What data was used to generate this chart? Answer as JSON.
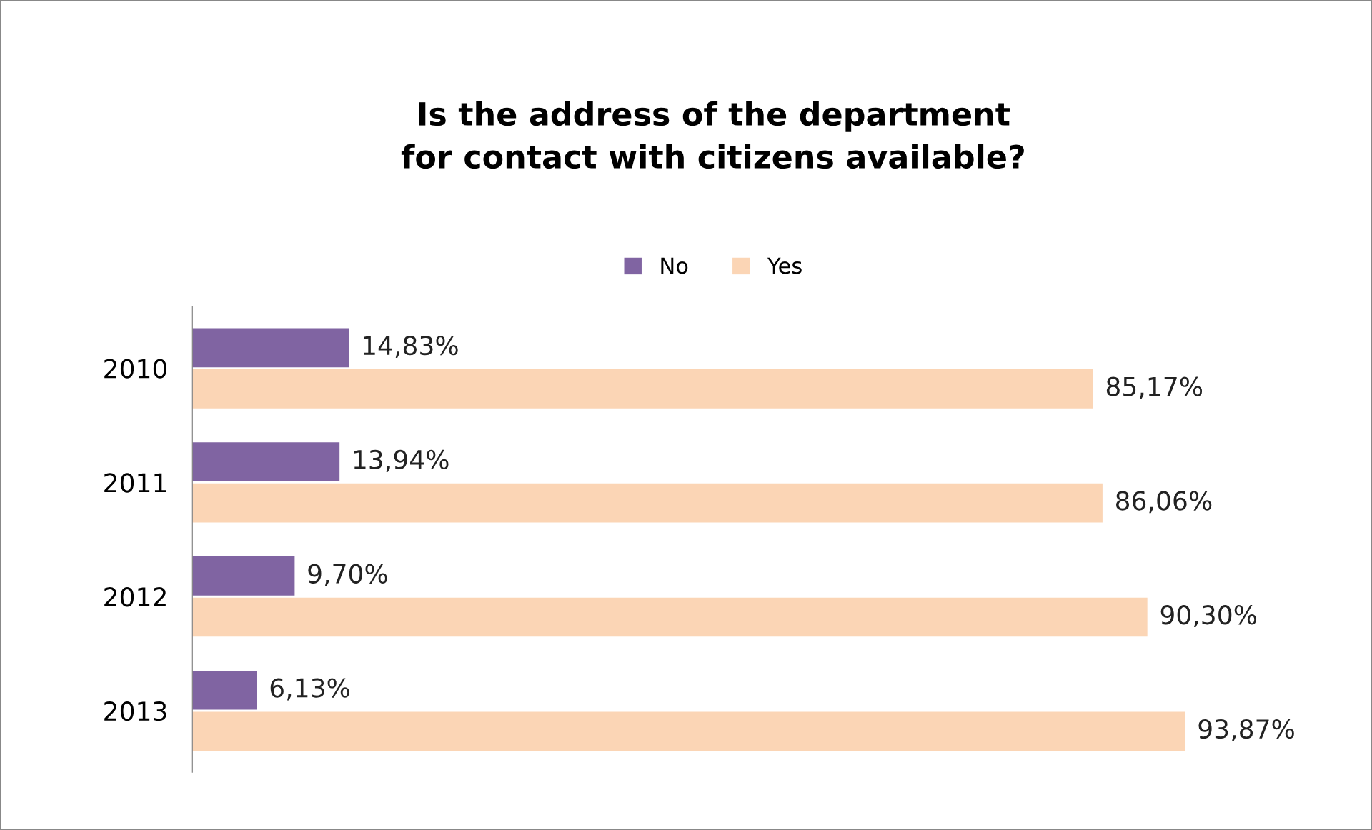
{
  "chart_data": {
    "type": "bar",
    "orientation": "horizontal",
    "title": "Is the address of the department\nfor contact with citizens available?",
    "categories": [
      "2010",
      "2011",
      "2012",
      "2013"
    ],
    "series": [
      {
        "name": "No",
        "color": "#8064a2",
        "values": [
          14.83,
          13.94,
          9.7,
          6.13
        ],
        "value_labels": [
          "14,83%",
          "13,94%",
          "9,70%",
          "6,13%"
        ]
      },
      {
        "name": "Yes",
        "color": "#fbd5b5",
        "values": [
          85.17,
          86.06,
          90.3,
          93.87
        ],
        "value_labels": [
          "85,17%",
          "86,06%",
          "90,30%",
          "93,87%"
        ]
      }
    ],
    "legend": "top",
    "grid": false
  }
}
